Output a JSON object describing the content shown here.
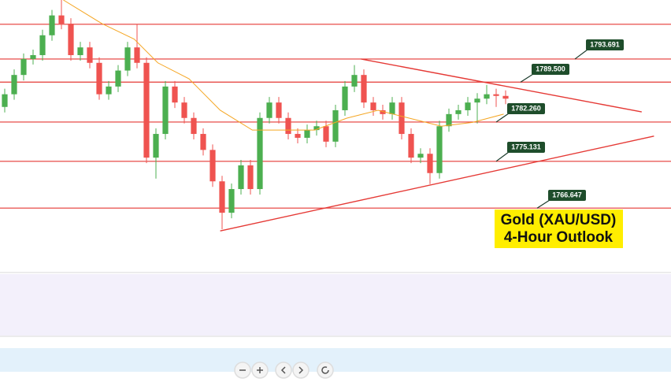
{
  "chart_data": {
    "type": "candlestick",
    "title_lines": [
      "Gold (XAU/USD)",
      "4-Hour Outlook"
    ],
    "ylim": [
      1755.1,
      1804.4
    ],
    "xlim": [
      0,
      71
    ],
    "up_color": "#4caf50",
    "down_color": "#ef5350",
    "level_color": "#e53935",
    "ma_color": "#f5a623",
    "levels": [
      1800,
      1793.691,
      1789.5,
      1782.26,
      1775.131,
      1766.647
    ],
    "level_labels": [
      null,
      "1793.691",
      "1789.500",
      "1782.260",
      "1775.131",
      "1766.647"
    ],
    "trendlines": [
      {
        "x": [
          38.2,
          67.9
        ],
        "values": [
          1793.7,
          1784.1
        ]
      },
      {
        "x": [
          23.3,
          69.2
        ],
        "values": [
          1762.5,
          1779.7
        ]
      }
    ],
    "ma": {
      "x": [
        6.7,
        10.8,
        14.2,
        16.7,
        20,
        23.3,
        26.7,
        30,
        33.3,
        36.7,
        40,
        43.3,
        46.7,
        50,
        53.3
      ],
      "values": [
        1804.4,
        1800.1,
        1797.3,
        1793.0,
        1790.1,
        1784.4,
        1780.8,
        1780.8,
        1780.8,
        1782.96,
        1784.4,
        1782.96,
        1781.5,
        1782.2,
        1783.7
      ]
    },
    "candles": [
      [
        1785.0,
        1788.3,
        1784.0,
        1787.3
      ],
      [
        1787.3,
        1791.8,
        1786.3,
        1790.8
      ],
      [
        1790.8,
        1794.7,
        1789.8,
        1793.7
      ],
      [
        1793.7,
        1795.4,
        1792.7,
        1794.4
      ],
      [
        1794.4,
        1799.0,
        1793.4,
        1798.0
      ],
      [
        1798.0,
        1802.6,
        1797.0,
        1801.6
      ],
      [
        1801.6,
        1804.4,
        1799.1,
        1800.1
      ],
      [
        1800.1,
        1801.1,
        1793.4,
        1794.4
      ],
      [
        1794.4,
        1796.8,
        1793.4,
        1795.8
      ],
      [
        1795.8,
        1796.8,
        1792.0,
        1793.0
      ],
      [
        1793.0,
        1794.0,
        1786.3,
        1787.3
      ],
      [
        1787.3,
        1789.7,
        1786.3,
        1788.7
      ],
      [
        1788.7,
        1792.6,
        1787.7,
        1791.6
      ],
      [
        1791.6,
        1796.8,
        1790.6,
        1795.8
      ],
      [
        1795.8,
        1800.0,
        1792.0,
        1793.0
      ],
      [
        1793.0,
        1794.0,
        1774.8,
        1775.8
      ],
      [
        1775.8,
        1781.1,
        1772.0,
        1780.1
      ],
      [
        1780.1,
        1789.7,
        1779.1,
        1788.7
      ],
      [
        1788.7,
        1789.7,
        1784.8,
        1785.8
      ],
      [
        1785.8,
        1786.8,
        1782.0,
        1783.0
      ],
      [
        1783.0,
        1784.0,
        1779.1,
        1780.1
      ],
      [
        1780.1,
        1781.1,
        1776.2,
        1777.2
      ],
      [
        1777.2,
        1778.2,
        1770.5,
        1771.5
      ],
      [
        1771.5,
        1772.5,
        1762.8,
        1765.8
      ],
      [
        1765.8,
        1771.1,
        1764.8,
        1770.1
      ],
      [
        1770.1,
        1775.4,
        1769.1,
        1774.4
      ],
      [
        1774.4,
        1775.4,
        1769.1,
        1770.1
      ],
      [
        1770.1,
        1784.0,
        1769.1,
        1783.0
      ],
      [
        1783.0,
        1786.8,
        1782.0,
        1785.8
      ],
      [
        1785.8,
        1786.8,
        1782.0,
        1783.0
      ],
      [
        1783.0,
        1784.0,
        1779.1,
        1780.1
      ],
      [
        1780.1,
        1781.1,
        1778.4,
        1779.4
      ],
      [
        1779.4,
        1781.8,
        1778.4,
        1780.8
      ],
      [
        1780.8,
        1782.5,
        1779.8,
        1781.5
      ],
      [
        1781.5,
        1782.5,
        1777.7,
        1778.7
      ],
      [
        1778.7,
        1785.4,
        1777.7,
        1784.4
      ],
      [
        1784.4,
        1789.7,
        1783.4,
        1788.7
      ],
      [
        1788.7,
        1792.6,
        1787.7,
        1790.8
      ],
      [
        1790.8,
        1791.8,
        1784.8,
        1785.8
      ],
      [
        1785.8,
        1786.8,
        1783.4,
        1784.4
      ],
      [
        1784.4,
        1785.4,
        1782.7,
        1783.7
      ],
      [
        1783.7,
        1786.8,
        1782.7,
        1785.8
      ],
      [
        1785.8,
        1786.8,
        1779.1,
        1780.1
      ],
      [
        1780.1,
        1781.1,
        1774.8,
        1775.8
      ],
      [
        1775.8,
        1777.5,
        1774.8,
        1776.5
      ],
      [
        1776.5,
        1777.5,
        1771.0,
        1773.0
      ],
      [
        1773.0,
        1782.5,
        1772.0,
        1781.5
      ],
      [
        1781.5,
        1784.7,
        1780.5,
        1783.7
      ],
      [
        1783.7,
        1785.4,
        1782.7,
        1784.4
      ],
      [
        1784.4,
        1786.8,
        1783.4,
        1785.8
      ],
      [
        1785.8,
        1787.5,
        1782.0,
        1786.5
      ],
      [
        1786.5,
        1789.0,
        1785.5,
        1787.3
      ],
      [
        1787.3,
        1788.3,
        1785.0,
        1787.0
      ],
      [
        1787.0,
        1788.0,
        1785.5,
        1786.5
      ]
    ]
  }
}
